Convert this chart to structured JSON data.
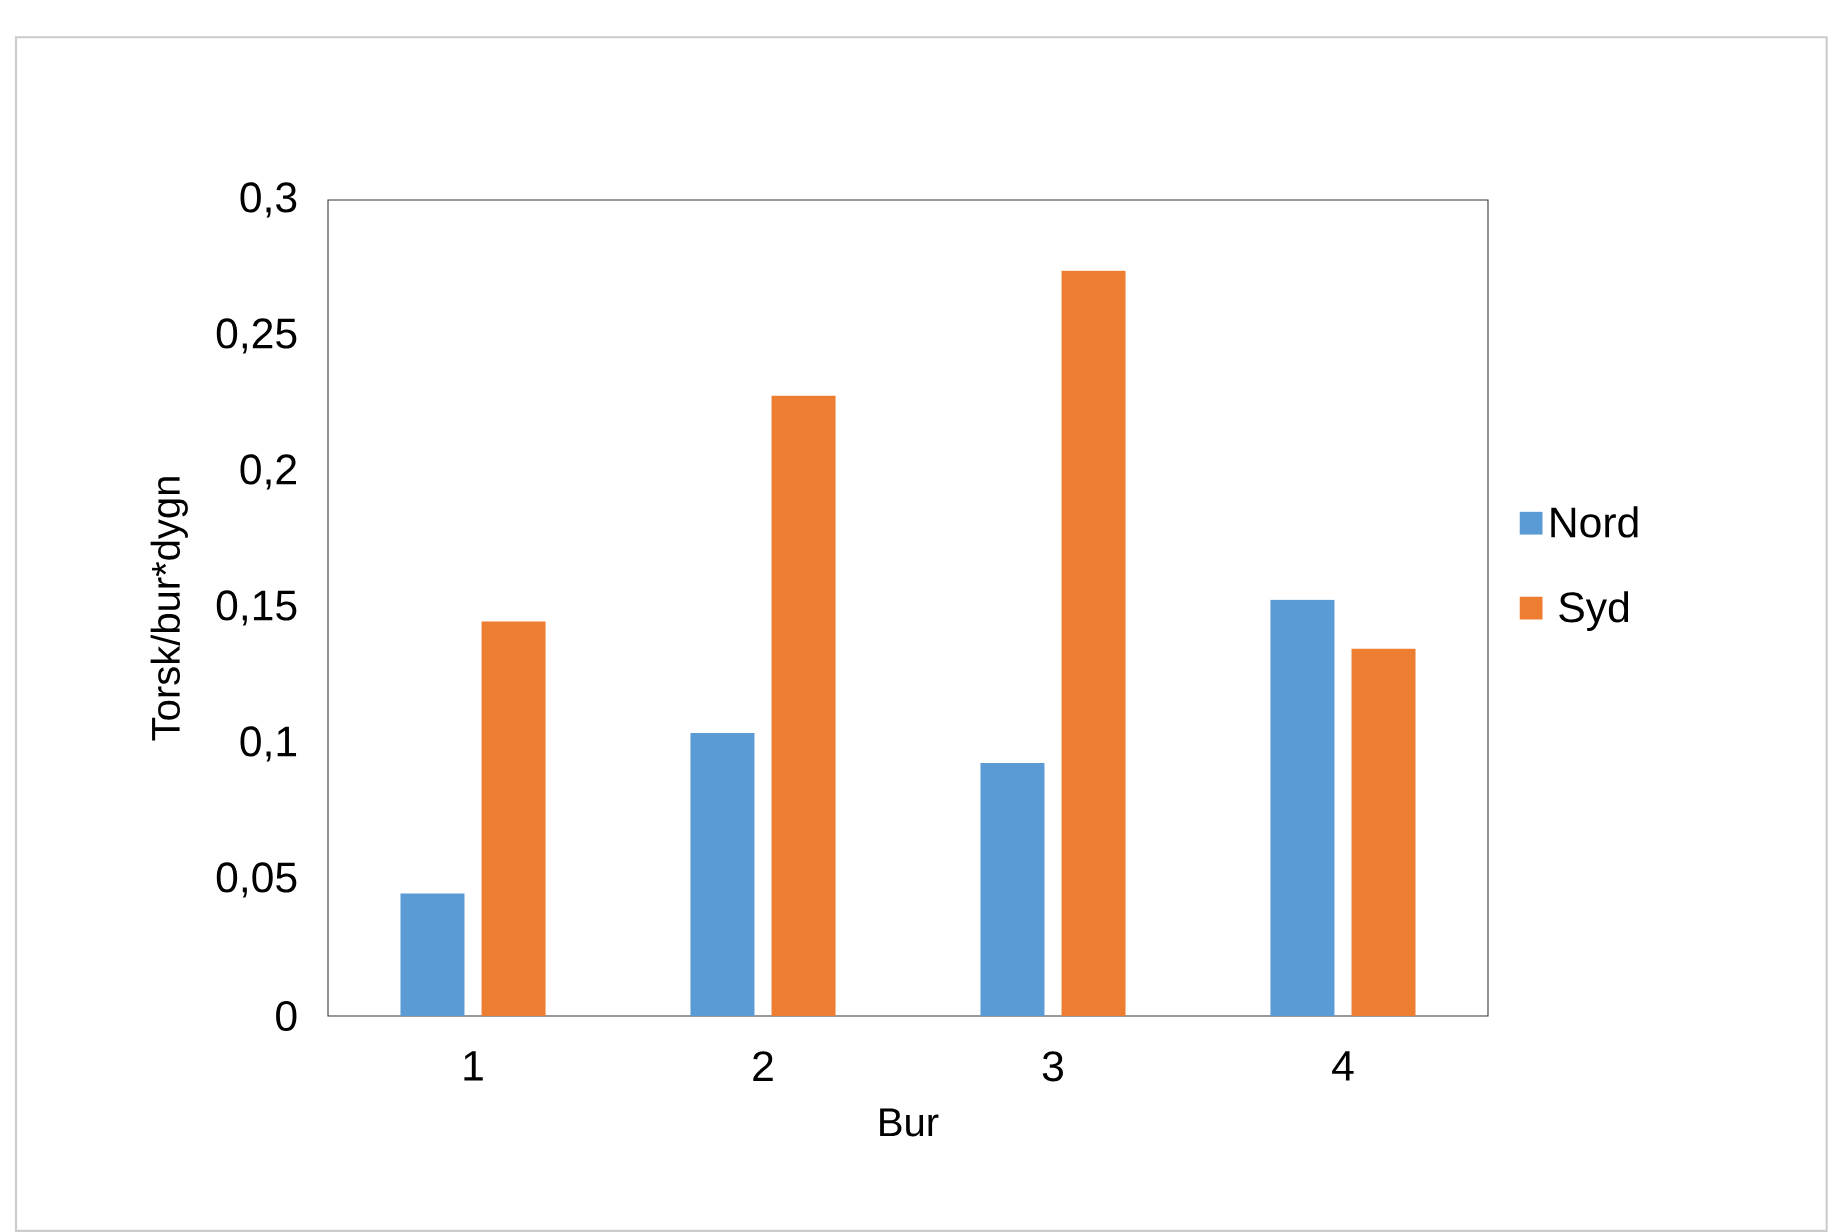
{
  "chart_data": {
    "type": "bar",
    "categories": [
      "1",
      "2",
      "3",
      "4"
    ],
    "series": [
      {
        "name": "Nord",
        "color": "#5b9bd5",
        "values": [
          0.045,
          0.104,
          0.093,
          0.153
        ]
      },
      {
        "name": "Syd",
        "color": "#ed7d31",
        "values": [
          0.145,
          0.228,
          0.274,
          0.135
        ]
      }
    ],
    "xlabel": "Bur",
    "ylabel": "Torsk/bur*dygn",
    "ylim": [
      0,
      0.3
    ],
    "yticks": [
      0,
      {
        "value": 0.05,
        "label": "0,05"
      },
      {
        "value": 0.1,
        "label": "0,1"
      },
      {
        "value": 0.15,
        "label": "0,15"
      },
      {
        "value": 0.2,
        "label": "0,2"
      },
      {
        "value": 0.25,
        "label": "0,25"
      },
      {
        "value": 0.3,
        "label": "0,3"
      }
    ],
    "grid": false,
    "legend": "right"
  }
}
